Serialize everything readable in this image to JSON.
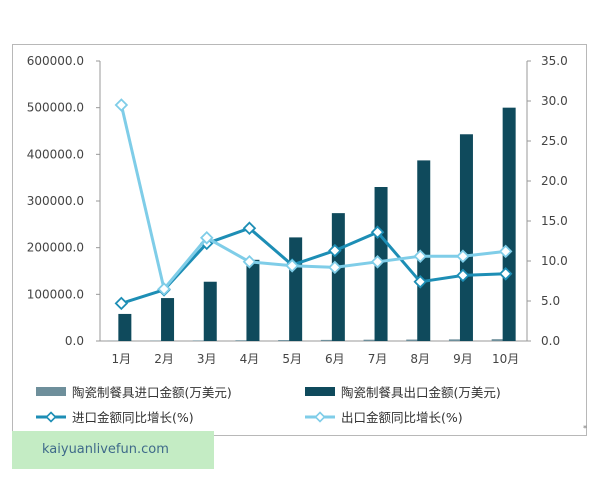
{
  "chart_data": {
    "type": "bar+line",
    "categories": [
      "1月",
      "2月",
      "3月",
      "4月",
      "5月",
      "6月",
      "7月",
      "8月",
      "9月",
      "10月"
    ],
    "bar_series": [
      {
        "name": "陶瓷制餐具进口金额(万美元)",
        "axis": "left",
        "color": "#6e8f9b",
        "values": [
          400,
          800,
          1200,
          1600,
          2000,
          2400,
          2800,
          3100,
          3500,
          3900
        ]
      },
      {
        "name": "陶瓷制餐具出口金额(万美元)",
        "axis": "left",
        "color": "#0f4a5c",
        "values": [
          58000,
          92000,
          127000,
          174000,
          222000,
          274000,
          330000,
          387000,
          443000,
          500000
        ]
      }
    ],
    "line_series": [
      {
        "name": "进口金额同比增长(%)",
        "axis": "right",
        "color": "#1d8eb5",
        "marker": "diamond",
        "values": [
          4.7,
          6.4,
          12.2,
          14.1,
          9.5,
          11.3,
          13.6,
          7.4,
          8.2,
          8.4
        ]
      },
      {
        "name": "出口金额同比增长(%)",
        "axis": "right",
        "color": "#7fcde8",
        "marker": "diamond",
        "values": [
          29.5,
          6.5,
          12.9,
          9.9,
          9.4,
          9.2,
          9.9,
          10.6,
          10.6,
          11.2
        ]
      }
    ],
    "y_left": {
      "min": 0,
      "max": 600000,
      "ticks": [
        "0.0",
        "100000.0",
        "200000.0",
        "300000.0",
        "400000.0",
        "500000.0",
        "600000.0"
      ]
    },
    "y_right": {
      "min": 0,
      "max": 35,
      "ticks": [
        "0.0",
        "5.0",
        "10.0",
        "15.0",
        "20.0",
        "25.0",
        "30.0",
        "35.0"
      ]
    },
    "grid": false,
    "legend_position": "bottom"
  },
  "watermark": "kaiyuanlivefun.com",
  "corner_mark": "*"
}
